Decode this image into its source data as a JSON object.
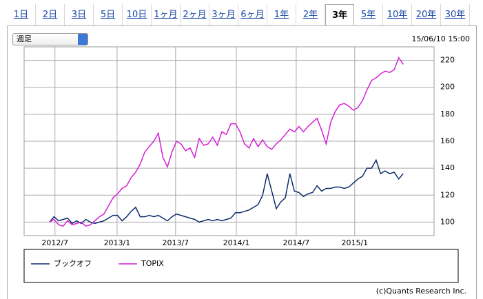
{
  "tabs": [
    "1日",
    "2日",
    "3日",
    "5日",
    "10日",
    "1ヶ月",
    "2ヶ月",
    "3ヶ月",
    "6ヶ月",
    "1年",
    "2年",
    "3年",
    "5年",
    "10年",
    "20年",
    "30年"
  ],
  "selected_tab": 11,
  "dropdown": "週足",
  "timestamp": "15/06/10 15:00",
  "copyright": "(c)Quants Research Inc.",
  "chart_data": {
    "type": "line",
    "xlim": [
      -5.6,
      84.8
    ],
    "xticks": [
      {
        "value": 1.2,
        "label": "2012/7"
      },
      {
        "value": 14.9,
        "label": "2013/1"
      },
      {
        "value": 27.8,
        "label": "2013/7"
      },
      {
        "value": 41.2,
        "label": "2014/1"
      },
      {
        "value": 54.4,
        "label": "2014/7"
      },
      {
        "value": 67.3,
        "label": "2015/1"
      }
    ],
    "ylim": [
      90,
      230
    ],
    "yticks": [
      100,
      120,
      140,
      160,
      180,
      200,
      220
    ],
    "y_axis_side": "right",
    "grid": true,
    "series": [
      {
        "name": "ブックオフ",
        "color": "#0d2c6b",
        "values": [
          100,
          104,
          101,
          102,
          103,
          99,
          101,
          99,
          102,
          100,
          99,
          100,
          101,
          103,
          105,
          105,
          101,
          104,
          108,
          111,
          104,
          104,
          105,
          104,
          105,
          103,
          101,
          104,
          106,
          105,
          104,
          103,
          102,
          100,
          101,
          102,
          101,
          102,
          101,
          102,
          103,
          107,
          107,
          108,
          109,
          111,
          113,
          120,
          136,
          123,
          110,
          115,
          118,
          136,
          123,
          122,
          119,
          121,
          122,
          127,
          123,
          125,
          125,
          126,
          126,
          125,
          126,
          129,
          132,
          134,
          140,
          140,
          146,
          136,
          138,
          136,
          137,
          132,
          136
        ]
      },
      {
        "name": "TOPIX",
        "color": "#d61fd6",
        "values": [
          100,
          102,
          98,
          97,
          101,
          98,
          99,
          100,
          97,
          98,
          101,
          104,
          106,
          112,
          118,
          121,
          125,
          127,
          133,
          137,
          143,
          152,
          156,
          160,
          166,
          148,
          141,
          152,
          160,
          158,
          153,
          155,
          148,
          162,
          157,
          158,
          163,
          157,
          167,
          165,
          173,
          173,
          167,
          158,
          155,
          162,
          156,
          161,
          156,
          154,
          158,
          161,
          165,
          169,
          167,
          171,
          167,
          171,
          174,
          177,
          168,
          158,
          174,
          182,
          187,
          188,
          186,
          183,
          185,
          190,
          198,
          205,
          207,
          210,
          212,
          211,
          213,
          222,
          217
        ]
      }
    ]
  }
}
